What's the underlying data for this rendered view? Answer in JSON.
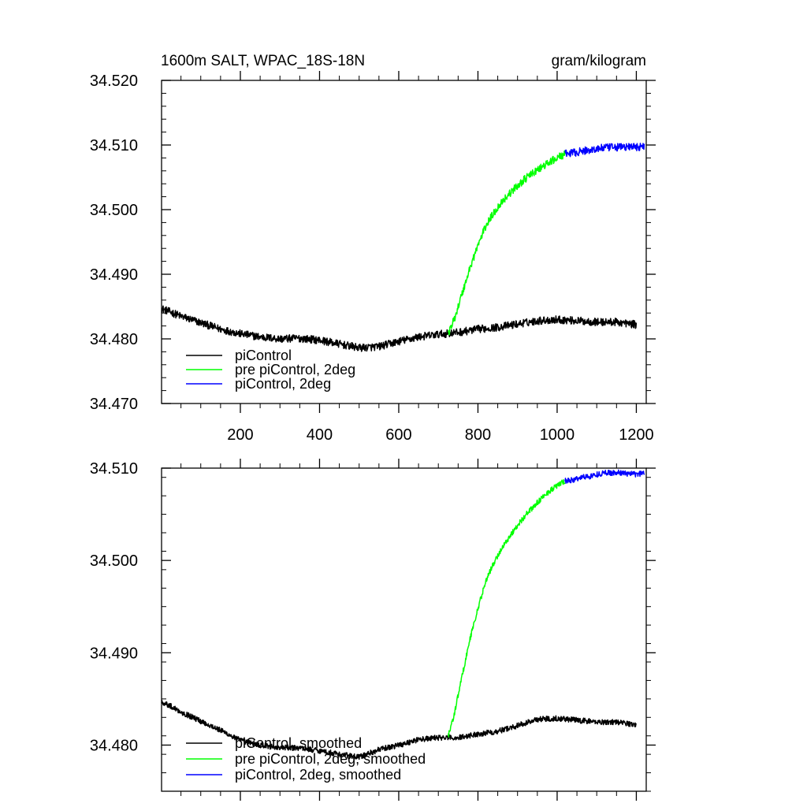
{
  "chart_data": [
    {
      "type": "line",
      "title_left": "1600m SALT, WPAC_18S-18N",
      "title_right": "gram/kilogram",
      "xlim": [
        1,
        1225
      ],
      "ylim": [
        34.47,
        34.52
      ],
      "x_ticks": [
        200,
        400,
        600,
        800,
        1000,
        1200
      ],
      "x_tick_labels": [
        "200",
        "400",
        "600",
        "800",
        "1000",
        "1200"
      ],
      "y_ticks": [
        34.47,
        34.48,
        34.49,
        34.5,
        34.51,
        34.52
      ],
      "y_tick_labels": [
        "34.470",
        "34.480",
        "34.490",
        "34.500",
        "34.510",
        "34.520"
      ],
      "noise": 0.0006,
      "legend": [
        {
          "label": "piControl",
          "color": "#000000"
        },
        {
          "label": "pre piControl, 2deg",
          "color": "#00ff00"
        },
        {
          "label": "piControl, 2deg",
          "color": "#0000ff"
        }
      ],
      "series": [
        {
          "name": "piControl",
          "color": "#000000",
          "x": [
            1,
            50,
            100,
            150,
            200,
            250,
            300,
            350,
            400,
            450,
            500,
            550,
            600,
            650,
            700,
            750,
            800,
            850,
            900,
            950,
            1000,
            1050,
            1100,
            1150,
            1200
          ],
          "y": [
            34.4847,
            34.4835,
            34.4825,
            34.4815,
            34.4808,
            34.4803,
            34.48,
            34.4801,
            34.4798,
            34.4792,
            34.4786,
            34.4788,
            34.4796,
            34.4803,
            34.4807,
            34.481,
            34.4815,
            34.4818,
            34.4823,
            34.4828,
            34.483,
            34.4828,
            34.4826,
            34.4826,
            34.4822
          ]
        },
        {
          "name": "pre piControl, 2deg",
          "color": "#00ff00",
          "x": [
            725,
            740,
            760,
            780,
            800,
            820,
            840,
            860,
            880,
            900,
            920,
            940,
            960,
            980,
            1000,
            1020
          ],
          "y": [
            34.4808,
            34.483,
            34.487,
            34.491,
            34.4945,
            34.4975,
            34.4995,
            34.5012,
            34.5025,
            34.5037,
            34.5048,
            34.5057,
            34.5065,
            34.5073,
            34.508,
            34.5086
          ]
        },
        {
          "name": "piControl, 2deg",
          "color": "#0000ff",
          "x": [
            1020,
            1040,
            1060,
            1080,
            1100,
            1120,
            1140,
            1160,
            1180,
            1200,
            1220
          ],
          "y": [
            34.5086,
            34.5088,
            34.509,
            34.5092,
            34.5094,
            34.5096,
            34.5096,
            34.5097,
            34.5097,
            34.5097,
            34.5098
          ]
        }
      ]
    },
    {
      "type": "line",
      "xlim": [
        1,
        1225
      ],
      "ylim": [
        34.475,
        34.51
      ],
      "x_ticks": [
        200,
        400,
        600,
        800,
        1000,
        1200
      ],
      "y_ticks": [
        34.48,
        34.49,
        34.5,
        34.51
      ],
      "y_tick_labels": [
        "34.480",
        "34.490",
        "34.500",
        "34.510"
      ],
      "noise": 0.0003,
      "legend": [
        {
          "label": "piControl, smoothed",
          "color": "#000000"
        },
        {
          "label": "pre piControl, 2deg, smoothed",
          "color": "#00ff00"
        },
        {
          "label": "piControl, 2deg, smoothed",
          "color": "#0000ff"
        }
      ],
      "series": [
        {
          "name": "piControl, smoothed",
          "color": "#000000",
          "x": [
            1,
            20,
            50,
            80,
            100,
            150,
            200,
            250,
            300,
            350,
            400,
            450,
            500,
            550,
            600,
            650,
            700,
            750,
            800,
            850,
            900,
            950,
            1000,
            1050,
            1100,
            1150,
            1200
          ],
          "y": [
            34.4847,
            34.4843,
            34.4836,
            34.483,
            34.4826,
            34.4816,
            34.4805,
            34.48,
            34.4797,
            34.4797,
            34.4794,
            34.479,
            34.4787,
            34.4795,
            34.48,
            34.4806,
            34.4808,
            34.4808,
            34.4812,
            34.4815,
            34.4821,
            34.4828,
            34.4829,
            34.4827,
            34.4825,
            34.4825,
            34.4822
          ]
        },
        {
          "name": "pre piControl, 2deg, smoothed",
          "color": "#00ff00",
          "x": [
            725,
            740,
            760,
            780,
            800,
            820,
            840,
            860,
            880,
            900,
            920,
            940,
            960,
            980,
            1000,
            1020
          ],
          "y": [
            34.481,
            34.4833,
            34.4875,
            34.4915,
            34.4948,
            34.4978,
            34.4997,
            34.5013,
            34.5026,
            34.5038,
            34.5049,
            34.5058,
            34.5067,
            34.5075,
            34.5081,
            34.5086
          ]
        },
        {
          "name": "piControl, 2deg, smoothed",
          "color": "#0000ff",
          "x": [
            1020,
            1040,
            1060,
            1080,
            1100,
            1120,
            1140,
            1160,
            1180,
            1200,
            1220
          ],
          "y": [
            34.5086,
            34.5087,
            34.509,
            34.5091,
            34.5093,
            34.5095,
            34.5095,
            34.5095,
            34.5094,
            34.5093,
            34.5095
          ]
        }
      ]
    }
  ]
}
